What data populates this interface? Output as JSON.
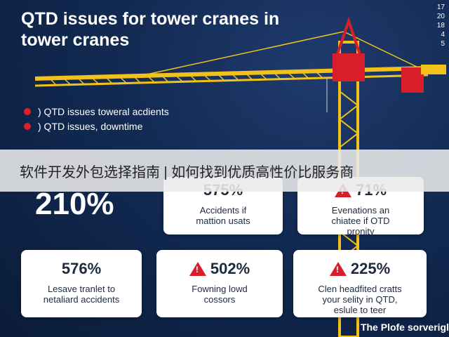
{
  "title": "QTD issues for tower cranes in tower cranes",
  "side_numbers": [
    "17",
    "20",
    "18",
    "4",
    "5"
  ],
  "bullets": [
    ") QTD issues toweral acdients",
    ") QTD issues, downtime"
  ],
  "banner": "软件开发外包选择指南 | 如何找到优质高性价比服务商",
  "big_stat": "210%",
  "cards": [
    {
      "value": "575%",
      "desc": "Accidents if\nmattion usats",
      "warning": false
    },
    {
      "value": "71%",
      "desc": "Evenations an\nchiatee if OTD\npronity",
      "warning": true
    },
    {
      "value": "576%",
      "desc": "Lesave tranlet to\nnetaliard accidents",
      "warning": false
    },
    {
      "value": "502%",
      "desc": "Fowning lowd\ncossors",
      "warning": true
    },
    {
      "value": "225%",
      "desc": "Clen headfited cratts\nyour selity in QTD,\neslule to teer",
      "warning": true
    }
  ],
  "footer": "The Plofe sorverigl",
  "colors": {
    "background": "#122a52",
    "crane_yellow": "#f2c21b",
    "alert_red": "#d81e2a"
  }
}
